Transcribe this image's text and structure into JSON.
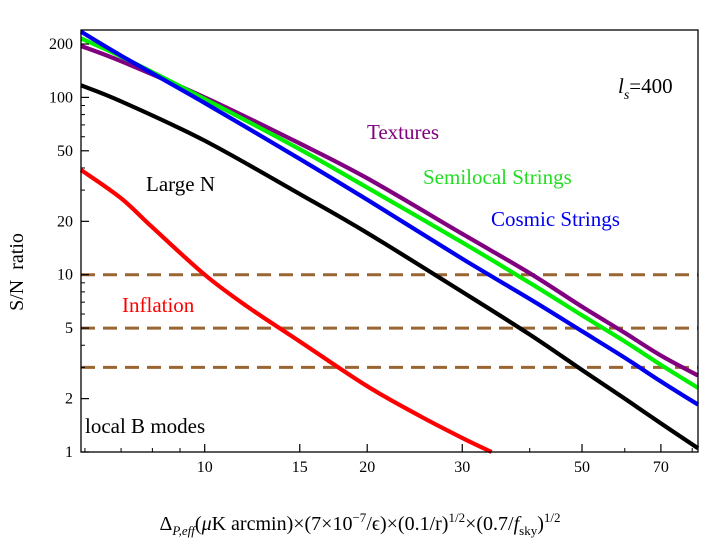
{
  "chart_data": {
    "type": "line",
    "title": "",
    "xlabel": {
      "delta": "Δ",
      "sub": "P,eff",
      "mu": "μ",
      "unit": "K arcmin)×(7×10",
      "exp1": "−7",
      "eps": "/ϵ)×(0.1/r)",
      "exp2": "1/2",
      "mid": "×(0.7/",
      "f": "f",
      "fsub": "sky",
      "close": ")",
      "exp3": "1/2"
    },
    "ylabel": "S/N  ratio",
    "xscale": "log",
    "yscale": "log",
    "xlim": [
      5.9,
      82
    ],
    "ylim": [
      1,
      240
    ],
    "xticks": [
      10,
      15,
      20,
      30,
      50,
      70
    ],
    "xtick_labels": [
      "10",
      "15",
      "20",
      "30",
      "50",
      "70"
    ],
    "yticks": [
      1,
      2,
      5,
      10,
      20,
      50,
      100,
      200
    ],
    "ytick_labels": [
      "1",
      "2",
      "5",
      "10",
      "20",
      "50",
      "100",
      "200"
    ],
    "annotation": {
      "l": "l",
      "s": "s",
      "value": "=400"
    },
    "corner_label": "local B modes",
    "series": [
      {
        "name": "Textures",
        "color": "#800080",
        "x": [
          5.9,
          7,
          10,
          15,
          20,
          30,
          40,
          50,
          60,
          70,
          82
        ],
        "y": [
          195,
          160,
          100,
          55,
          35,
          17,
          10.2,
          6.6,
          4.7,
          3.5,
          2.7
        ]
      },
      {
        "name": "Semilocal Strings",
        "color": "#00ee00",
        "x": [
          5.9,
          7,
          10,
          15,
          20,
          30,
          40,
          50,
          60,
          70,
          82
        ],
        "y": [
          215,
          170,
          98,
          51,
          31,
          15.2,
          9,
          5.9,
          4.2,
          3.1,
          2.3
        ]
      },
      {
        "name": "Cosmic Strings",
        "color": "#0000ee",
        "x": [
          5.9,
          7,
          10,
          15,
          20,
          30,
          40,
          50,
          60,
          70,
          82
        ],
        "y": [
          235,
          172,
          93,
          45,
          26.5,
          12.3,
          7.3,
          4.8,
          3.4,
          2.5,
          1.85
        ]
      },
      {
        "name": "Large N",
        "color": "#000000",
        "x": [
          5.9,
          7,
          10,
          15,
          20,
          30,
          40,
          50,
          60,
          70,
          82
        ],
        "y": [
          117,
          95,
          57,
          28.5,
          17.2,
          8,
          4.6,
          2.9,
          2,
          1.45,
          1.05
        ]
      },
      {
        "name": "Inflation",
        "color": "#ff0000",
        "x": [
          5.9,
          7,
          8,
          10,
          12,
          15,
          20,
          25,
          30,
          34
        ],
        "y": [
          39,
          27,
          18.5,
          10,
          6.6,
          4.2,
          2.35,
          1.6,
          1.2,
          1.0
        ]
      }
    ],
    "reference_lines": [
      {
        "y": 10,
        "color": "#996633",
        "style": "dashed"
      },
      {
        "y": 5,
        "color": "#996633",
        "style": "dashed"
      },
      {
        "y": 3,
        "color": "#996633",
        "style": "dashed"
      }
    ]
  }
}
